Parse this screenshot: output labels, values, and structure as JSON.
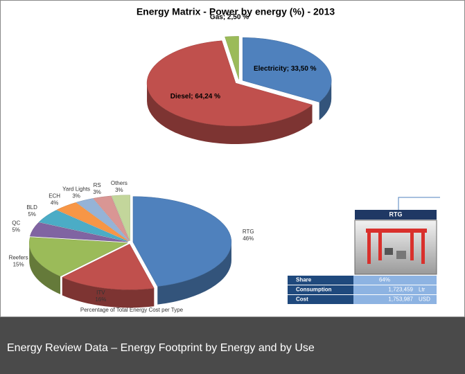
{
  "chart_data": [
    {
      "type": "pie",
      "title": "Energy Matrix - Power by energy (%) - 2013",
      "values": [
        33.5,
        64.24,
        2.5
      ],
      "value_labels": [
        "Electricity; 33,50 %",
        "Diesel; 64,24 %",
        "Gas; 2,50 %"
      ],
      "colors": [
        "#4f81bd",
        "#c0504d",
        "#9bbb59"
      ]
    },
    {
      "type": "pie",
      "title": "Percentage of Total Energy Cost per Type",
      "categories": [
        "RTG",
        "ITV",
        "Reefers",
        "QC",
        "BLD",
        "ECH",
        "Yard Lights",
        "RS",
        "Others"
      ],
      "values": [
        46,
        16,
        15,
        5,
        5,
        4,
        3,
        3,
        3
      ],
      "value_labels": [
        "46%",
        "16%",
        "15%",
        "5%",
        "5%",
        "4%",
        "3%",
        "3%",
        "3%"
      ],
      "colors": [
        "#4f81bd",
        "#c0504d",
        "#9bbb59",
        "#8064a2",
        "#4bacc6",
        "#f79646",
        "#95b3d7",
        "#d99694",
        "#c3d69b"
      ]
    }
  ],
  "rtg_panel": {
    "title": "RTG",
    "rows": [
      [
        "Share",
        "64%"
      ],
      [
        "Consumption",
        "1,723,459",
        "Ltr"
      ],
      [
        "Cost",
        "1,753,987",
        "USD"
      ]
    ]
  },
  "caption": "Energy Review Data – Energy Footprint by Energy and by Use"
}
